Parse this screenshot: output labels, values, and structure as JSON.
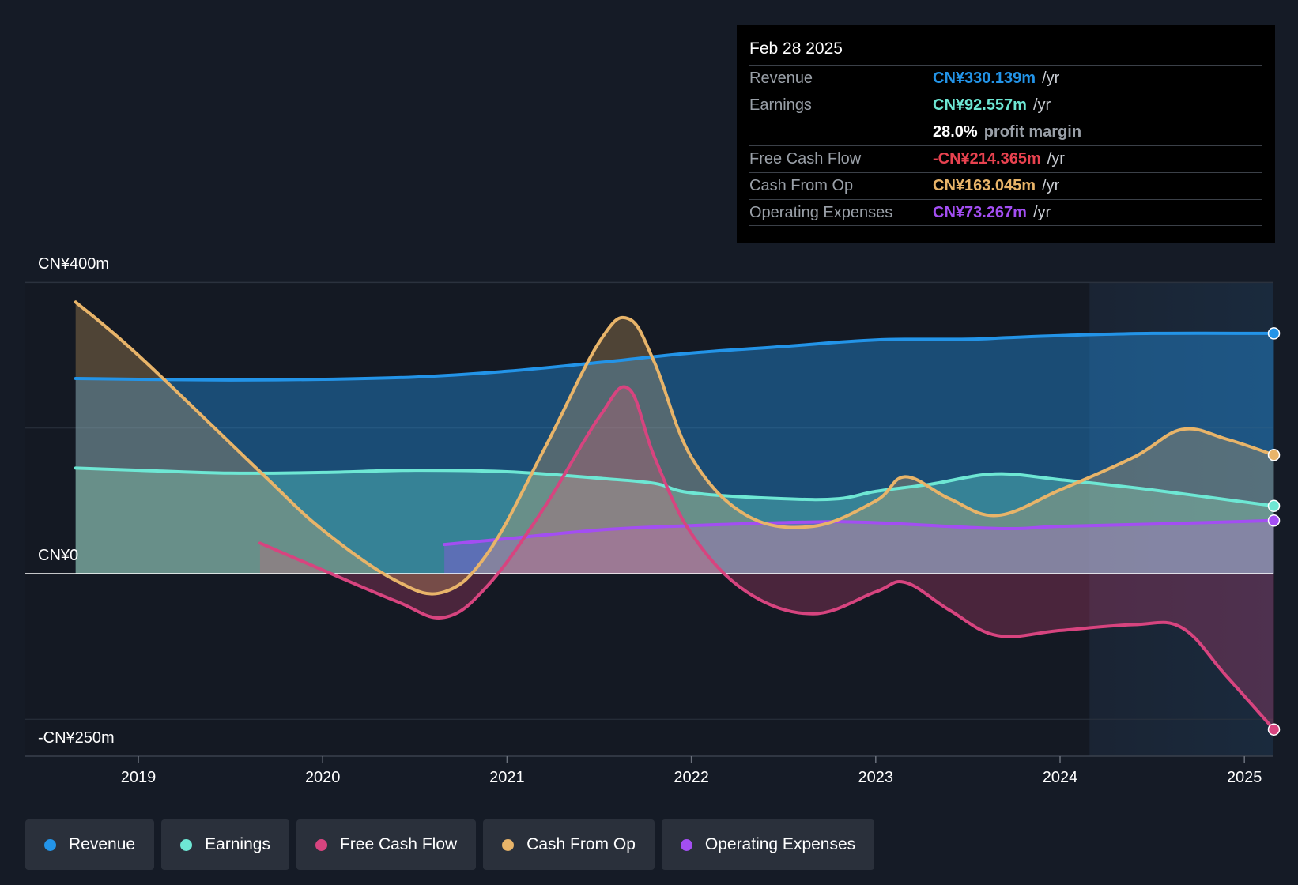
{
  "colors": {
    "revenue": "#2394e8",
    "earnings": "#6ee7d4",
    "fcf": "#d7447f",
    "cfo": "#e8b469",
    "opex": "#a34ef2"
  },
  "tooltip": {
    "date": "Feb 28 2025",
    "rows": [
      {
        "label": "Revenue",
        "value": "CN¥330.139m",
        "unit": "/yr"
      },
      {
        "label": "Earnings",
        "value": "CN¥92.557m",
        "unit": "/yr"
      },
      {
        "label": "",
        "value": "28.0%",
        "unit": "profit margin"
      },
      {
        "label": "Free Cash Flow",
        "value": "-CN¥214.365m",
        "unit": "/yr"
      },
      {
        "label": "Cash From Op",
        "value": "CN¥163.045m",
        "unit": "/yr"
      },
      {
        "label": "Operating Expenses",
        "value": "CN¥73.267m",
        "unit": "/yr"
      }
    ]
  },
  "legend": [
    {
      "label": "Revenue",
      "key": "revenue"
    },
    {
      "label": "Earnings",
      "key": "earnings"
    },
    {
      "label": "Free Cash Flow",
      "key": "fcf"
    },
    {
      "label": "Cash From Op",
      "key": "cfo"
    },
    {
      "label": "Operating Expenses",
      "key": "opex"
    }
  ],
  "chart_data": {
    "type": "area",
    "y_axis_labels": [
      "CN¥400m",
      "CN¥0",
      "-CN¥250m"
    ],
    "x_ticks": [
      {
        "label": "2019",
        "x": 2019.0
      },
      {
        "label": "2020",
        "x": 2020.0
      },
      {
        "label": "2021",
        "x": 2021.0
      },
      {
        "label": "2022",
        "x": 2022.0
      },
      {
        "label": "2023",
        "x": 2023.0
      },
      {
        "label": "2024",
        "x": 2024.0
      },
      {
        "label": "2025",
        "x": 2025.0
      }
    ],
    "xlim": [
      2018.4,
      2025.16
    ],
    "ylim": [
      -250,
      400
    ],
    "y_gridlines": [
      400,
      200,
      0,
      -200
    ],
    "forecast_start": 2024.16,
    "series": [
      {
        "name": "Revenue",
        "key": "revenue",
        "points": [
          [
            2018.66,
            268
          ],
          [
            2019.0,
            267
          ],
          [
            2019.5,
            266
          ],
          [
            2020.0,
            267
          ],
          [
            2020.5,
            270
          ],
          [
            2021.0,
            278
          ],
          [
            2021.5,
            290
          ],
          [
            2022.0,
            303
          ],
          [
            2022.5,
            312
          ],
          [
            2023.0,
            321
          ],
          [
            2023.5,
            322
          ],
          [
            2023.7,
            324
          ],
          [
            2024.0,
            327
          ],
          [
            2024.5,
            330
          ],
          [
            2025.16,
            330
          ]
        ]
      },
      {
        "name": "Earnings",
        "key": "earnings",
        "points": [
          [
            2018.66,
            145
          ],
          [
            2019.0,
            142
          ],
          [
            2019.5,
            138
          ],
          [
            2020.0,
            139
          ],
          [
            2020.5,
            142
          ],
          [
            2021.0,
            140
          ],
          [
            2021.5,
            131
          ],
          [
            2021.8,
            124
          ],
          [
            2022.0,
            111
          ],
          [
            2022.5,
            103
          ],
          [
            2022.8,
            103
          ],
          [
            2023.0,
            113
          ],
          [
            2023.3,
            123
          ],
          [
            2023.65,
            137
          ],
          [
            2024.0,
            129
          ],
          [
            2024.5,
            115
          ],
          [
            2025.16,
            93
          ]
        ]
      },
      {
        "name": "Free Cash Flow",
        "key": "fcf",
        "points": [
          [
            2019.66,
            42
          ],
          [
            2020.0,
            5
          ],
          [
            2020.4,
            -38
          ],
          [
            2020.66,
            -60
          ],
          [
            2020.9,
            -15
          ],
          [
            2021.2,
            90
          ],
          [
            2021.5,
            215
          ],
          [
            2021.66,
            254
          ],
          [
            2021.8,
            160
          ],
          [
            2022.0,
            55
          ],
          [
            2022.3,
            -25
          ],
          [
            2022.66,
            -55
          ],
          [
            2023.0,
            -25
          ],
          [
            2023.16,
            -12
          ],
          [
            2023.4,
            -50
          ],
          [
            2023.66,
            -85
          ],
          [
            2024.0,
            -78
          ],
          [
            2024.4,
            -70
          ],
          [
            2024.66,
            -74
          ],
          [
            2024.9,
            -140
          ],
          [
            2025.16,
            -214
          ]
        ]
      },
      {
        "name": "Cash From Op",
        "key": "cfo",
        "points": [
          [
            2018.66,
            373
          ],
          [
            2019.0,
            300
          ],
          [
            2019.66,
            140
          ],
          [
            2020.0,
            60
          ],
          [
            2020.4,
            -10
          ],
          [
            2020.66,
            -25
          ],
          [
            2020.9,
            30
          ],
          [
            2021.2,
            170
          ],
          [
            2021.5,
            318
          ],
          [
            2021.66,
            350
          ],
          [
            2021.8,
            290
          ],
          [
            2022.0,
            160
          ],
          [
            2022.3,
            80
          ],
          [
            2022.66,
            65
          ],
          [
            2023.0,
            100
          ],
          [
            2023.16,
            133
          ],
          [
            2023.4,
            103
          ],
          [
            2023.66,
            80
          ],
          [
            2024.0,
            115
          ],
          [
            2024.4,
            160
          ],
          [
            2024.66,
            198
          ],
          [
            2024.9,
            185
          ],
          [
            2025.16,
            163
          ]
        ]
      },
      {
        "name": "Operating Expenses",
        "key": "opex",
        "points": [
          [
            2020.66,
            40
          ],
          [
            2021.0,
            48
          ],
          [
            2021.5,
            60
          ],
          [
            2022.0,
            66
          ],
          [
            2022.66,
            71
          ],
          [
            2023.0,
            70
          ],
          [
            2023.66,
            62
          ],
          [
            2024.0,
            65
          ],
          [
            2024.5,
            68
          ],
          [
            2025.16,
            73
          ]
        ]
      }
    ]
  }
}
